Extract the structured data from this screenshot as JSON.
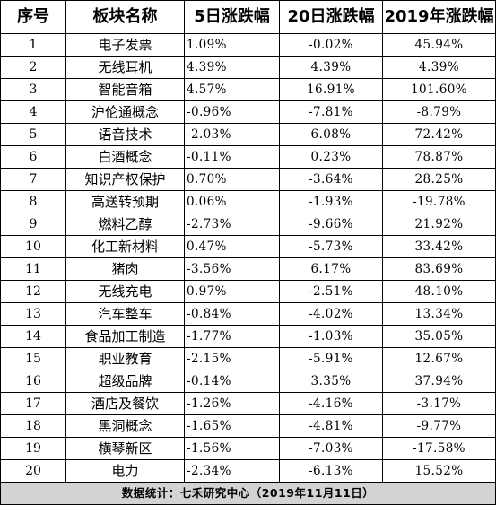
{
  "table": {
    "headers": [
      "序号",
      "板块名称",
      "5日涨跌幅",
      "20日涨跌幅",
      "2019年涨跌幅"
    ],
    "rows": [
      [
        "1",
        "电子发票",
        "1.09%",
        "-0.02%",
        "45.94%"
      ],
      [
        "2",
        "无线耳机",
        "4.39%",
        "4.39%",
        "4.39%"
      ],
      [
        "3",
        "智能音箱",
        "4.57%",
        "16.91%",
        "101.60%"
      ],
      [
        "4",
        "沪伦通概念",
        "-0.96%",
        "-7.81%",
        "-8.79%"
      ],
      [
        "5",
        "语音技术",
        "-2.03%",
        "6.08%",
        "72.42%"
      ],
      [
        "6",
        "白酒概念",
        "-0.11%",
        "0.23%",
        "78.87%"
      ],
      [
        "7",
        "知识产权保护",
        "0.70%",
        "-3.64%",
        "28.25%"
      ],
      [
        "8",
        "高送转预期",
        "0.06%",
        "-1.93%",
        "-19.78%"
      ],
      [
        "9",
        "燃料乙醇",
        "-2.73%",
        "-9.66%",
        "21.92%"
      ],
      [
        "10",
        "化工新材料",
        "0.47%",
        "-5.73%",
        "33.42%"
      ],
      [
        "11",
        "猪肉",
        "-3.56%",
        "6.17%",
        "83.69%"
      ],
      [
        "12",
        "无线充电",
        "0.97%",
        "-2.51%",
        "48.10%"
      ],
      [
        "13",
        "汽车整车",
        "-0.84%",
        "-4.02%",
        "13.34%"
      ],
      [
        "14",
        "食品加工制造",
        "-1.77%",
        "-1.03%",
        "35.05%"
      ],
      [
        "15",
        "职业教育",
        "-2.15%",
        "-5.91%",
        "12.67%"
      ],
      [
        "16",
        "超级品牌",
        "-0.14%",
        "3.35%",
        "37.94%"
      ],
      [
        "17",
        "酒店及餐饮",
        "-1.26%",
        "-4.16%",
        "-3.17%"
      ],
      [
        "18",
        "黑洞概念",
        "-1.65%",
        "-4.81%",
        "-9.77%"
      ],
      [
        "19",
        "横琴新区",
        "-1.56%",
        "-7.03%",
        "-17.58%"
      ],
      [
        "20",
        "电力",
        "-2.34%",
        "-6.13%",
        "15.52%"
      ]
    ],
    "footer": "数据统计：七禾研究中心（2019年11月11日）"
  },
  "colors": {
    "border": "#000000",
    "footer_bg": "#d3d3d3",
    "text": "#000000"
  }
}
